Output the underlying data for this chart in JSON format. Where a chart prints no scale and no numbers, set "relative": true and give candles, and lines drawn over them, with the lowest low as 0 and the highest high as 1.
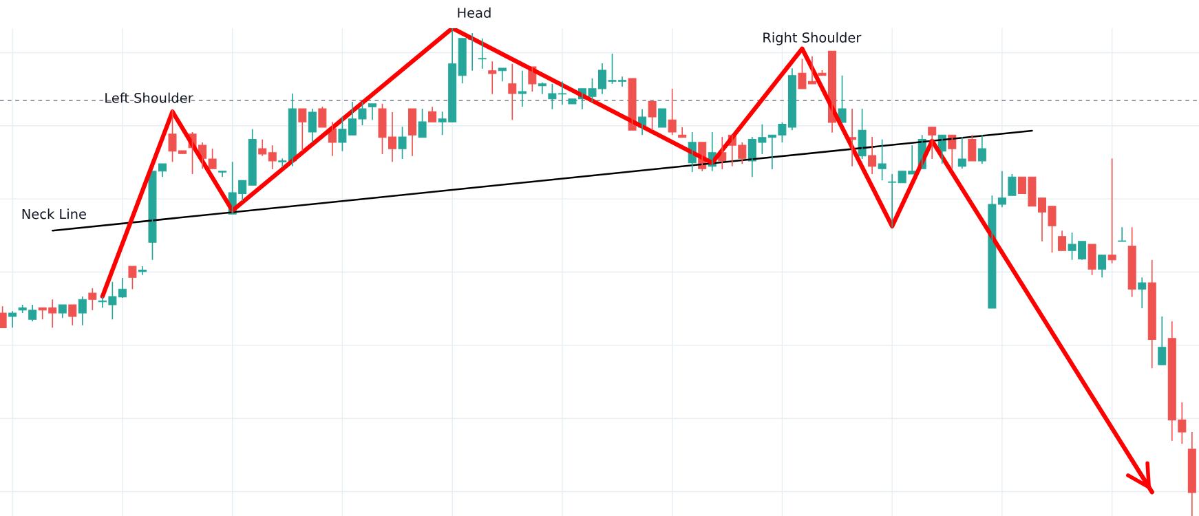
{
  "chart_data": {
    "type": "candlestick",
    "relative": true,
    "grid": true,
    "categories": [
      null,
      null,
      null,
      null,
      null,
      null,
      null,
      null,
      null,
      null,
      null,
      null,
      null,
      null,
      null,
      null,
      null,
      null,
      null,
      null,
      null,
      null,
      null,
      null,
      null,
      null,
      null,
      null,
      null,
      null,
      null,
      null,
      null,
      null,
      null,
      null,
      null,
      null,
      null,
      null,
      null,
      null,
      null,
      null,
      null,
      null,
      null,
      null,
      null,
      null,
      null,
      null,
      null,
      null,
      null,
      null,
      null,
      null,
      null,
      null,
      null,
      null,
      null,
      null,
      null,
      null,
      null,
      null,
      null,
      null,
      null,
      null,
      null,
      null,
      null,
      null,
      null,
      null,
      null,
      null,
      null,
      null,
      null,
      null,
      null,
      null,
      null,
      null,
      null,
      null,
      null,
      null,
      null,
      null,
      null,
      null,
      null,
      null,
      null,
      null,
      null,
      null,
      null,
      null,
      null,
      null,
      null,
      null,
      null,
      null,
      null,
      null,
      null,
      null,
      null,
      null,
      null,
      null,
      null,
      null
    ],
    "colors": [
      "#ef5350",
      "#26a69a",
      "#26a69a",
      "#26a69a",
      "#ef5350",
      "#ef5350",
      "#26a69a",
      "#ef5350",
      "#26a69a",
      "#ef5350",
      "#26a69a",
      "#26a69a",
      "#26a69a",
      "#ef5350",
      "#26a69a",
      "#26a69a",
      "#26a69a",
      "#ef5350",
      "#ef5350",
      "#ef5350",
      "#ef5350",
      "#ef5350",
      "#26a69a",
      "#26a69a",
      "#26a69a",
      "#26a69a",
      "#ef5350",
      "#ef5350",
      "#26a69a",
      "#26a69a",
      "#ef5350",
      "#26a69a",
      "#ef5350",
      "#ef5350",
      "#26a69a",
      "#26a69a",
      "#26a69a",
      "#26a69a",
      "#ef5350",
      "#ef5350",
      "#26a69a",
      "#ef5350",
      "#26a69a",
      "#ef5350",
      "#26a69a",
      "#26a69a",
      "#26a69a",
      "#26a69a",
      "#26a69a",
      "#ef5350",
      "#26a69a",
      "#ef5350",
      "#26a69a",
      "#ef5350",
      "#26a69a",
      "#26a69a",
      "#26a69a",
      "#26a69a",
      "#26a69a",
      "#26a69a",
      "#26a69a",
      "#26a69a",
      "#26a69a",
      "#ef5350",
      "#26a69a",
      "#ef5350",
      "#26a69a",
      "#ef5350",
      "#ef5350",
      "#26a69a",
      "#ef5350",
      "#26a69a",
      "#ef5350",
      "#ef5350",
      "#ef5350",
      "#26a69a",
      "#26a69a",
      "#26a69a",
      "#26a69a",
      "#26a69a",
      "#ef5350",
      "#ef5350",
      "#ef5350",
      "#ef5350",
      "#26a69a",
      "#ef5350",
      "#26a69a",
      "#ef5350",
      "#26a69a",
      "#26a69a",
      "#26a69a",
      "#26a69a",
      "#26a69a",
      "#ef5350",
      "#26a69a",
      "#ef5350",
      "#26a69a",
      "#ef5350",
      "#26a69a",
      "#26a69a",
      "#26a69a",
      "#26a69a",
      "#ef5350",
      "#ef5350",
      "#ef5350",
      "#ef5350",
      "#ef5350",
      "#26a69a",
      "#26a69a",
      "#ef5350",
      "#26a69a",
      "#ef5350",
      "#26a69a",
      "#ef5350",
      "#26a69a",
      "#ef5350",
      "#26a69a",
      "#ef5350",
      "#ef5350",
      "#ef5350"
    ],
    "ohlc": [
      [
        0.416,
        0.43,
        0.386,
        0.386
      ],
      [
        0.409,
        0.42,
        0.386,
        0.416
      ],
      [
        0.422,
        0.433,
        0.416,
        0.427
      ],
      [
        0.403,
        0.433,
        0.399,
        0.422
      ],
      [
        0.427,
        0.427,
        0.403,
        0.422
      ],
      [
        0.427,
        0.444,
        0.386,
        0.416
      ],
      [
        0.416,
        0.433,
        0.406,
        0.433
      ],
      [
        0.433,
        0.433,
        0.391,
        0.409
      ],
      [
        0.416,
        0.45,
        0.391,
        0.444
      ],
      [
        0.457,
        0.467,
        0.422,
        0.444
      ],
      [
        0.439,
        0.45,
        0.427,
        0.441
      ],
      [
        0.433,
        0.48,
        0.403,
        0.45
      ],
      [
        0.449,
        0.488,
        0.447,
        0.465
      ],
      [
        0.512,
        0.512,
        0.465,
        0.489
      ],
      [
        0.501,
        0.512,
        0.494,
        0.504
      ],
      [
        0.561,
        0.707,
        0.525,
        0.707
      ],
      [
        0.707,
        0.722,
        0.695,
        0.722
      ],
      [
        0.783,
        0.832,
        0.726,
        0.748
      ],
      [
        0.749,
        0.749,
        0.743,
        0.743
      ],
      [
        0.783,
        0.787,
        0.701,
        0.755
      ],
      [
        0.76,
        0.766,
        0.712,
        0.733
      ],
      [
        0.732,
        0.753,
        0.712,
        0.712
      ],
      [
        0.705,
        0.707,
        0.695,
        0.707
      ],
      [
        0.619,
        0.726,
        0.619,
        0.663
      ],
      [
        0.661,
        0.688,
        0.646,
        0.688
      ],
      [
        0.678,
        0.793,
        0.678,
        0.772
      ],
      [
        0.753,
        0.772,
        0.738,
        0.742
      ],
      [
        0.745,
        0.76,
        0.711,
        0.728
      ],
      [
        0.726,
        0.733,
        0.715,
        0.728
      ],
      [
        0.728,
        0.866,
        0.717,
        0.835
      ],
      [
        0.835,
        0.835,
        0.748,
        0.808
      ],
      [
        0.787,
        0.835,
        0.766,
        0.828
      ],
      [
        0.835,
        0.839,
        0.797,
        0.797
      ],
      [
        0.794,
        0.808,
        0.738,
        0.766
      ],
      [
        0.766,
        0.819,
        0.748,
        0.793
      ],
      [
        0.781,
        0.849,
        0.781,
        0.814
      ],
      [
        0.814,
        0.849,
        0.801,
        0.835
      ],
      [
        0.839,
        0.845,
        0.812,
        0.845
      ],
      [
        0.835,
        0.845,
        0.742,
        0.776
      ],
      [
        0.777,
        0.828,
        0.726,
        0.753
      ],
      [
        0.753,
        0.798,
        0.732,
        0.777
      ],
      [
        0.835,
        0.835,
        0.738,
        0.781
      ],
      [
        0.776,
        0.835,
        0.776,
        0.808
      ],
      [
        0.829,
        0.839,
        0.808,
        0.808
      ],
      [
        0.808,
        0.829,
        0.781,
        0.814
      ],
      [
        0.808,
        1,
        0.808,
        0.927
      ],
      [
        0.903,
        0.979,
        0.887,
        0.979
      ],
      [
        0.977,
        0.99,
        0.913,
        0.979
      ],
      [
        0.937,
        0.979,
        0.917,
        0.938
      ],
      [
        0.913,
        0.932,
        0.865,
        0.907
      ],
      [
        0.913,
        0.918,
        0.891,
        0.918
      ],
      [
        0.886,
        0.927,
        0.812,
        0.866
      ],
      [
        0.866,
        0.913,
        0.839,
        0.87
      ],
      [
        0.921,
        0.921,
        0.87,
        0.886
      ],
      [
        0.882,
        0.889,
        0.865,
        0.886
      ],
      [
        0.855,
        0.886,
        0.834,
        0.866
      ],
      [
        0.865,
        0.891,
        0.843,
        0.866
      ],
      [
        0.845,
        0.855,
        0.845,
        0.855
      ],
      [
        0.855,
        0.876,
        0.834,
        0.876
      ],
      [
        0.86,
        0.897,
        0.849,
        0.876
      ],
      [
        0.876,
        0.928,
        0.865,
        0.914
      ],
      [
        0.891,
        0.948,
        0.886,
        0.893
      ],
      [
        0.891,
        0.901,
        0.88,
        0.893
      ],
      [
        0.897,
        0.897,
        0.791,
        0.791
      ],
      [
        0.797,
        0.834,
        0.781,
        0.818
      ],
      [
        0.85,
        0.85,
        0.791,
        0.818
      ],
      [
        0.797,
        0.835,
        0.797,
        0.835
      ],
      [
        0.812,
        0.876,
        0.781,
        0.787
      ],
      [
        0.781,
        0.797,
        0.776,
        0.776
      ],
      [
        0.724,
        0.787,
        0.705,
        0.766
      ],
      [
        0.766,
        0.766,
        0.707,
        0.712
      ],
      [
        0.717,
        0.787,
        0.707,
        0.745
      ],
      [
        0.745,
        0.777,
        0.711,
        0.728
      ],
      [
        0.781,
        0.781,
        0.717,
        0.76
      ],
      [
        0.76,
        0.766,
        0.722,
        0.733
      ],
      [
        0.728,
        0.777,
        0.695,
        0.772
      ],
      [
        0.766,
        0.803,
        0.742,
        0.776
      ],
      [
        0.776,
        0.781,
        0.711,
        0.781
      ],
      [
        0.781,
        0.807,
        0.766,
        0.803
      ],
      [
        0.797,
        0.918,
        0.791,
        0.903
      ],
      [
        0.908,
        0.937,
        0.876,
        0.876
      ],
      [
        0.891,
        0.942,
        0.886,
        0.886
      ],
      [
        0.908,
        0.914,
        0.903,
        0.903
      ],
      [
        0.953,
        0.953,
        0.786,
        0.807
      ],
      [
        0.807,
        0.903,
        0.807,
        0.835
      ],
      [
        0.776,
        0.835,
        0.717,
        0.772
      ],
      [
        0.738,
        0.835,
        0.732,
        0.791
      ],
      [
        0.739,
        0.777,
        0.701,
        0.717
      ],
      [
        0.712,
        0.772,
        0.688,
        0.722
      ],
      [
        0.684,
        0.701,
        0.592,
        0.685
      ],
      [
        0.683,
        0.707,
        0.683,
        0.707
      ],
      [
        0.701,
        0.76,
        0.701,
        0.707
      ],
      [
        0.712,
        0.781,
        0.712,
        0.772
      ],
      [
        0.797,
        0.797,
        0.732,
        0.781
      ],
      [
        0.748,
        0.781,
        0.722,
        0.781
      ],
      [
        0.781,
        0.781,
        0.712,
        0.753
      ],
      [
        0.717,
        0.777,
        0.712,
        0.732
      ],
      [
        0.772,
        0.781,
        0.728,
        0.728
      ],
      [
        0.728,
        0.781,
        0.722,
        0.753
      ],
      [
        0.426,
        0.657,
        0.426,
        0.639
      ],
      [
        0.639,
        0.707,
        0.633,
        0.652
      ],
      [
        0.657,
        0.701,
        0.657,
        0.695
      ],
      [
        0.695,
        0.695,
        0.661,
        0.661
      ],
      [
        0.695,
        0.695,
        0.635,
        0.635
      ],
      [
        0.652,
        0.652,
        0.563,
        0.623
      ],
      [
        0.635,
        0.635,
        0.54,
        0.595
      ],
      [
        0.573,
        0.585,
        0.544,
        0.544
      ],
      [
        0.544,
        0.581,
        0.525,
        0.557
      ],
      [
        0.527,
        0.563,
        0.525,
        0.563
      ],
      [
        0.557,
        0.557,
        0.494,
        0.506
      ],
      [
        0.506,
        0.535,
        0.489,
        0.535
      ],
      [
        0.535,
        0.733,
        0.518,
        0.525
      ],
      [
        0.563,
        0.592,
        0.563,
        0.564
      ],
      [
        0.553,
        0.592,
        0.449,
        0.465
      ],
      [
        0.465,
        0.489,
        0.426,
        0.478
      ],
      [
        0.478,
        0.525,
        0.303,
        0.362
      ],
      [
        0.31,
        0.409,
        0.31,
        0.346
      ],
      [
        0.364,
        0.399,
        0.154,
        0.197
      ],
      [
        0.197,
        0.233,
        0.148,
        0.172
      ],
      [
        0.137,
        0.172,
        0,
        0.048
      ]
    ],
    "series": [
      {
        "type": "line",
        "color": "#000000",
        "values": [
          null,
          null,
          null,
          null,
          null,
          0.585,
          null,
          null,
          null,
          null,
          null,
          null,
          null,
          null,
          null,
          null,
          null,
          null,
          null,
          null,
          null,
          null,
          null,
          null,
          null,
          null,
          null,
          null,
          null,
          null,
          null,
          null,
          null,
          null,
          null,
          null,
          null,
          null,
          null,
          null,
          null,
          null,
          null,
          null,
          null,
          null,
          null,
          null,
          null,
          null,
          null,
          null,
          null,
          null,
          null,
          null,
          null,
          null,
          null,
          null,
          null,
          null,
          null,
          null,
          null,
          null,
          null,
          null,
          null,
          null,
          null,
          null,
          null,
          null,
          null,
          null,
          null,
          null,
          null,
          null,
          null,
          null,
          null,
          null,
          null,
          null,
          null,
          null,
          null,
          null,
          null,
          null,
          null,
          null,
          null,
          null,
          null,
          null,
          null,
          null,
          null,
          null,
          null,
          0.79,
          null,
          null,
          null,
          null,
          null,
          null,
          null,
          null,
          null,
          null,
          null,
          null,
          null,
          null,
          null,
          null
        ]
      },
      {
        "type": "line",
        "color": "#ff0000",
        "values": [
          null,
          null,
          null,
          null,
          null,
          null,
          null,
          null,
          null,
          null,
          0.45,
          null,
          null,
          null,
          null,
          null,
          null,
          0.829,
          null,
          null,
          null,
          null,
          null,
          0.626,
          null,
          null,
          null,
          null,
          null,
          null,
          null,
          null,
          null,
          null,
          null,
          null,
          null,
          null,
          null,
          null,
          null,
          null,
          null,
          null,
          null,
          1.0,
          null,
          null,
          null,
          null,
          null,
          null,
          null,
          null,
          null,
          null,
          null,
          null,
          null,
          null,
          null,
          null,
          null,
          null,
          null,
          null,
          null,
          null,
          null,
          null,
          null,
          0.724,
          null,
          null,
          null,
          null,
          null,
          null,
          null,
          null,
          0.958,
          null,
          null,
          null,
          null,
          null,
          null,
          null,
          null,
          0.594,
          null,
          null,
          null,
          0.769,
          null,
          null,
          null,
          null,
          null,
          null,
          null,
          null,
          null,
          null,
          null,
          null,
          null,
          null,
          null,
          null,
          null,
          null,
          null,
          null,
          null,
          0.049,
          null,
          null,
          null,
          null
        ]
      }
    ],
    "ref_lines": [
      {
        "axis": "y",
        "value": 0.852,
        "color": "#787b86",
        "line_style": "dashed"
      }
    ],
    "annotations": [
      "Left Shoulder",
      "Head",
      "Right Shoulder",
      "Neck Line"
    ]
  }
}
